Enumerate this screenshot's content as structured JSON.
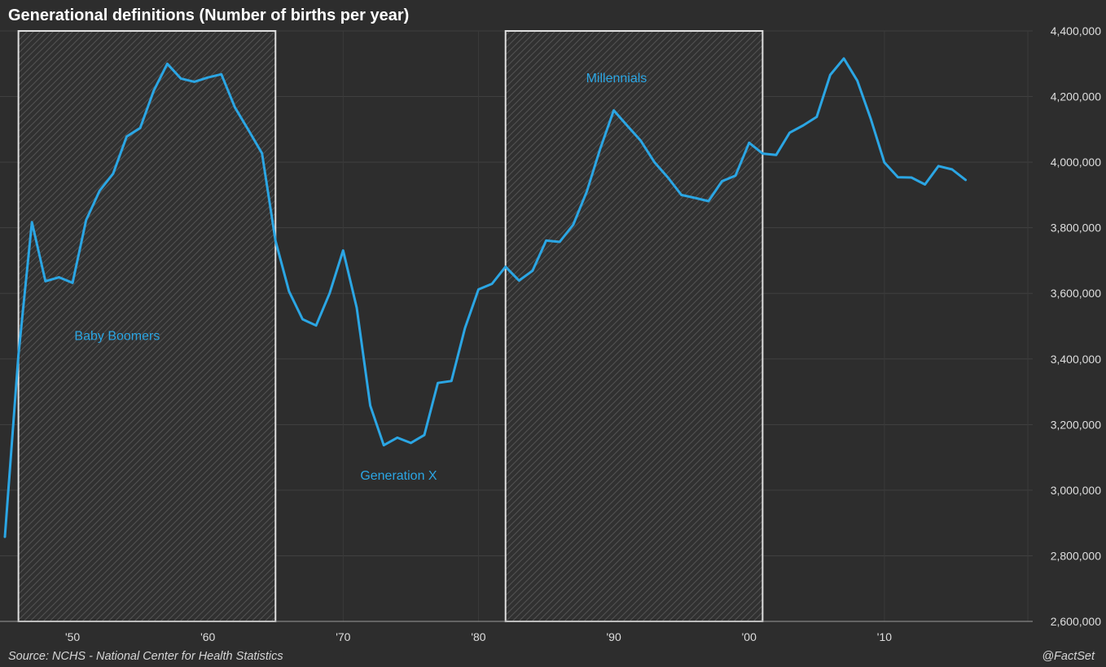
{
  "title": "Generational definitions (Number of births per year)",
  "footer": {
    "source": "Source: NCHS - National Center for Health Statistics",
    "brand": "@FactSet"
  },
  "colors": {
    "background": "#2d2d2d",
    "line": "#2BA6E4",
    "grid": "#404040",
    "grid_vertical": "#3a3a3a",
    "hatch": "#515151",
    "band_fill": "#313131",
    "band_border": "#DFDFDF",
    "axis_line": "#9a9a9a",
    "axis_text": "#DEDEDE",
    "title_text": "#FFFFFF",
    "footer_text": "#D6D6D6"
  },
  "chart_data": {
    "type": "line",
    "title": "Generational definitions (Number of births per year)",
    "xlabel": "",
    "ylabel": "",
    "grid": true,
    "legend": "none",
    "xlim": [
      1945,
      2020.6
    ],
    "ylim": [
      2600000,
      4400000
    ],
    "y_ticks": [
      2600000,
      2800000,
      3000000,
      3200000,
      3400000,
      3600000,
      3800000,
      4000000,
      4200000,
      4400000
    ],
    "x_ticks": [
      {
        "year": 1950,
        "label": "'50"
      },
      {
        "year": 1960,
        "label": "'60"
      },
      {
        "year": 1970,
        "label": "'70"
      },
      {
        "year": 1980,
        "label": "'80"
      },
      {
        "year": 1990,
        "label": "'90"
      },
      {
        "year": 2000,
        "label": "'00"
      },
      {
        "year": 2010,
        "label": "'10"
      }
    ],
    "x": [
      1945,
      1946,
      1947,
      1948,
      1949,
      1950,
      1951,
      1952,
      1953,
      1954,
      1955,
      1956,
      1957,
      1958,
      1959,
      1960,
      1961,
      1962,
      1963,
      1964,
      1965,
      1966,
      1967,
      1968,
      1969,
      1970,
      1971,
      1972,
      1973,
      1974,
      1975,
      1976,
      1977,
      1978,
      1979,
      1980,
      1981,
      1982,
      1983,
      1984,
      1985,
      1986,
      1987,
      1988,
      1989,
      1990,
      1991,
      1992,
      1993,
      1994,
      1995,
      1996,
      1997,
      1998,
      1999,
      2000,
      2001,
      2002,
      2003,
      2004,
      2005,
      2006,
      2007,
      2008,
      2009,
      2010,
      2011,
      2012,
      2013,
      2014,
      2015,
      2016
    ],
    "values": [
      2858000,
      3411000,
      3817000,
      3637000,
      3649000,
      3632000,
      3823000,
      3913000,
      3965000,
      4078000,
      4104000,
      4218000,
      4300000,
      4255000,
      4245000,
      4258000,
      4268000,
      4167000,
      4098000,
      4027000,
      3760000,
      3606000,
      3521000,
      3502000,
      3600000,
      3731000,
      3556000,
      3258000,
      3137000,
      3160000,
      3144000,
      3168000,
      3327000,
      3333000,
      3494000,
      3612000,
      3629000,
      3681000,
      3639000,
      3669000,
      3761000,
      3757000,
      3809000,
      3910000,
      4041000,
      4158000,
      4111000,
      4065000,
      4000000,
      3953000,
      3900000,
      3891000,
      3881000,
      3942000,
      3959000,
      4059000,
      4026000,
      4022000,
      4090000,
      4112000,
      4138000,
      4266000,
      4316000,
      4248000,
      4131000,
      3999000,
      3954000,
      3953000,
      3932000,
      3988000,
      3978000,
      3946000
    ],
    "bands": [
      {
        "name": "Baby Boomers",
        "from": 1946,
        "to": 1965
      },
      {
        "name": "Millennials",
        "from": 1982,
        "to": 2001
      }
    ],
    "annotations": [
      {
        "text": "Baby Boomers",
        "year": 1953.3,
        "value": 3470000
      },
      {
        "text": "Generation X",
        "year": 1974.1,
        "value": 3045000
      },
      {
        "text": "Millennials",
        "year": 1990.2,
        "value": 4256000
      }
    ]
  }
}
